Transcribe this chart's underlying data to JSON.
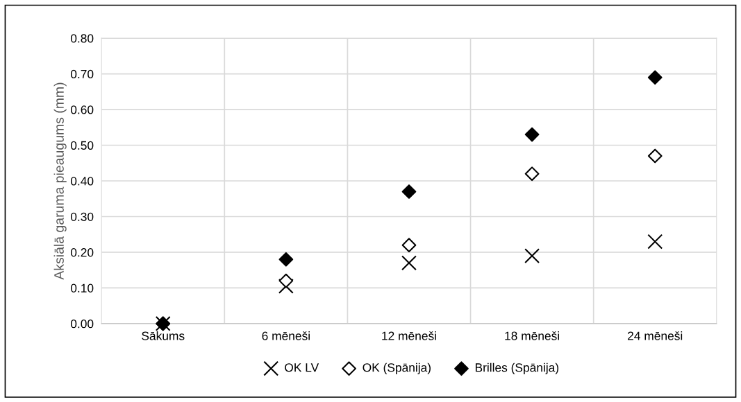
{
  "chart_data": {
    "type": "scatter",
    "ylabel": "Aksiālā garuma pieaugums (mm)",
    "categories": [
      "Sākums",
      "6 mēneši",
      "12 mēneši",
      "18 mēneši",
      "24 mēneši"
    ],
    "series": [
      {
        "name": "OK LV",
        "color": "#000000",
        "marker": "cross",
        "values": [
          0,
          0.105,
          0.17,
          0.19,
          0.23
        ]
      },
      {
        "name": "OK (Spānija)",
        "color": "#000000",
        "marker": "diamond",
        "values": [
          0,
          0.12,
          0.22,
          0.42,
          0.47
        ]
      },
      {
        "name": "Brilles (Spānija)",
        "color": "#000000",
        "marker": "diamond",
        "values": [
          0,
          0.18,
          0.37,
          0.53,
          0.69
        ]
      }
    ],
    "ylim": [
      0,
      0.8
    ],
    "yticks": [
      {
        "value": 0,
        "label": "0.00"
      },
      {
        "value": 0.1,
        "label": "0.10"
      },
      {
        "value": 0.2,
        "label": "0.20"
      },
      {
        "value": 0.3,
        "label": "0.30"
      },
      {
        "value": 0.4,
        "label": "0.40"
      },
      {
        "value": 0.5,
        "label": "0.50"
      },
      {
        "value": 0.6,
        "label": "0.60"
      },
      {
        "value": 0.7,
        "label": "0.70"
      },
      {
        "value": 0.8,
        "label": "0.80"
      }
    ],
    "grid": true,
    "legend": "bottom"
  }
}
